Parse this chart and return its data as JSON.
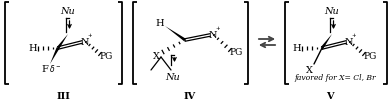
{
  "bg_color": "#ffffff",
  "line_color": "#000000",
  "label_III": "III",
  "label_IV": "IV",
  "label_V": "V",
  "label_favored": "favored for X= Cl, Br",
  "fig_width": 3.92,
  "fig_height": 1.05,
  "dpi": 100
}
